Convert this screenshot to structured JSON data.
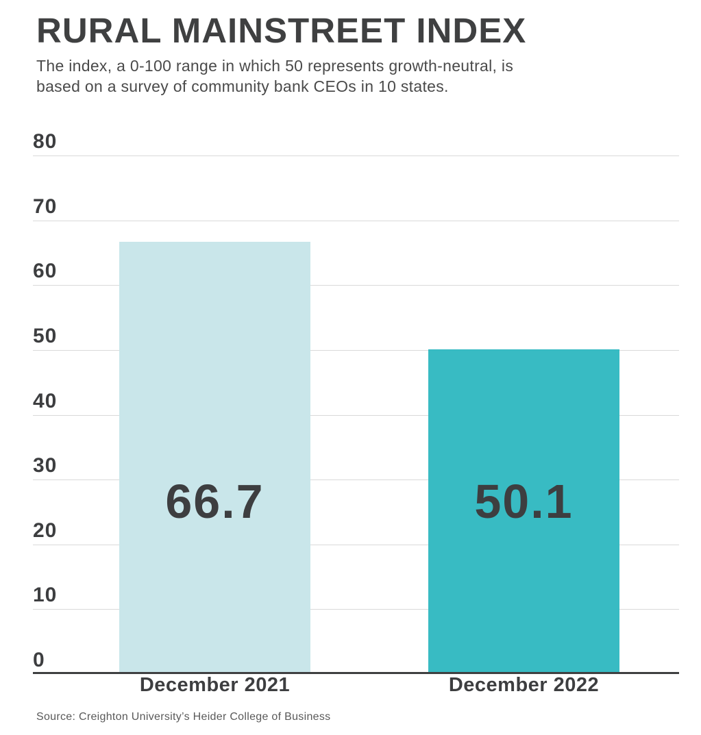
{
  "header": {
    "title": "RURAL MAINSTREET INDEX",
    "subtitle_lines": [
      "The index, a 0-100 range in which 50 represents growth-neutral, is",
      "based on a survey of community bank CEOs in 10 states."
    ]
  },
  "chart_data": {
    "type": "bar",
    "title": "RURAL MAINSTREET INDEX",
    "subtitle": "The index, a 0-100 range in which 50 represents growth-neutral, is based on a survey of community bank CEOs in 10 states.",
    "categories": [
      "December 2021",
      "December 2022"
    ],
    "values": [
      66.7,
      50.1
    ],
    "value_labels": [
      "66.7",
      "50.1"
    ],
    "bar_colors": [
      "#c9e6ea",
      "#38bbc3"
    ],
    "xlabel": "",
    "ylabel": "",
    "ylim": [
      0,
      80
    ],
    "yticks": [
      0,
      10,
      20,
      30,
      40,
      50,
      60,
      70,
      80
    ],
    "grid": true,
    "gridline_color": "#d9d9d9",
    "axis_color": "#3f4041",
    "label_color": "#3d3e40",
    "legend": "none"
  },
  "footer": {
    "source": "Source: Creighton University’s Heider College of Business"
  }
}
